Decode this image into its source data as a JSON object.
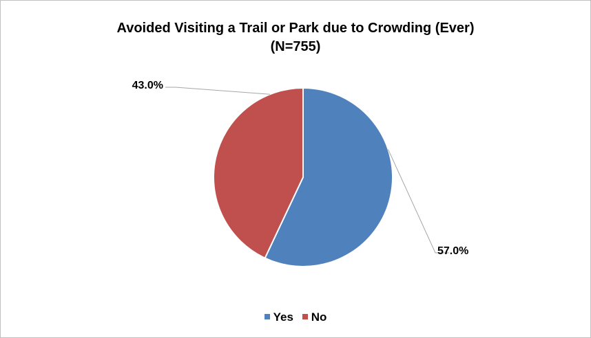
{
  "chart_data": {
    "type": "pie",
    "title": "Avoided Visiting a Trail or Park due to Crowding (Ever)",
    "subtitle": "(N=755)",
    "categories": [
      "Yes",
      "No"
    ],
    "values": [
      57.0,
      43.0
    ],
    "labels": [
      "57.0%",
      "43.0%"
    ],
    "colors": [
      "#4f81bd",
      "#c0504d"
    ],
    "legend_position": "bottom"
  }
}
